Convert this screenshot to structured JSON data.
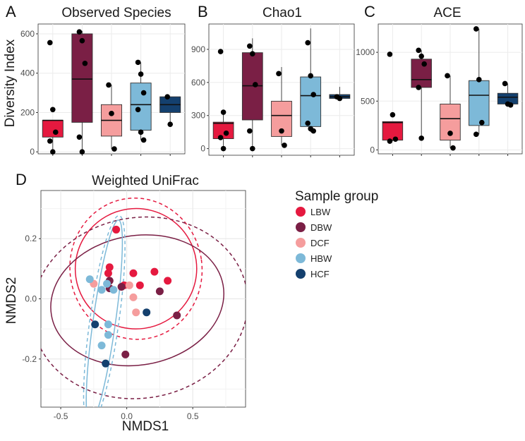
{
  "colors": {
    "LBW": "#e5193f",
    "DBW": "#7a1f45",
    "DCF": "#f59d9d",
    "HBW": "#7db9d8",
    "HCF": "#14406e"
  },
  "chart_data": [
    {
      "type": "box",
      "panel": "A",
      "title": "Observed Species",
      "ylabel": "Diversity Index",
      "categories": [
        "LBW",
        "DBW",
        "DCF",
        "HBW",
        "HCF"
      ],
      "ylim": [
        -10,
        650
      ],
      "yticks": [
        0,
        200,
        400,
        600
      ],
      "boxes": [
        {
          "group": "LBW",
          "min": 0,
          "q1": 75,
          "median": 160,
          "q3": 160,
          "max": 160
        },
        {
          "group": "DBW",
          "min": 0,
          "q1": 150,
          "median": 370,
          "q3": 600,
          "max": 615
        },
        {
          "group": "DCF",
          "min": 15,
          "q1": 80,
          "median": 160,
          "q3": 240,
          "max": 340
        },
        {
          "group": "HBW",
          "min": 60,
          "q1": 110,
          "median": 240,
          "q3": 350,
          "max": 455
        },
        {
          "group": "HCF",
          "min": 140,
          "q1": 200,
          "median": 240,
          "q3": 280,
          "max": 280
        }
      ],
      "points": [
        {
          "group": "LBW",
          "values": [
            555,
            215,
            100,
            55,
            0
          ]
        },
        {
          "group": "DBW",
          "values": [
            610,
            565,
            450,
            75,
            0
          ]
        },
        {
          "group": "DCF",
          "values": [
            340,
            195,
            15
          ]
        },
        {
          "group": "HBW",
          "values": [
            455,
            395,
            300,
            215,
            100,
            60
          ]
        },
        {
          "group": "HCF",
          "values": [
            280,
            140
          ]
        }
      ]
    },
    {
      "type": "box",
      "panel": "B",
      "title": "Chao1",
      "categories": [
        "LBW",
        "DBW",
        "DCF",
        "HBW",
        "HCF"
      ],
      "ylim": [
        -60,
        1130
      ],
      "yticks": [
        0,
        300,
        600,
        900
      ],
      "boxes": [
        {
          "group": "LBW",
          "min": 0,
          "q1": 90,
          "median": 230,
          "q3": 240,
          "max": 350
        },
        {
          "group": "DBW",
          "min": 0,
          "q1": 260,
          "median": 570,
          "q3": 870,
          "max": 1000
        },
        {
          "group": "DCF",
          "min": 30,
          "q1": 110,
          "median": 300,
          "q3": 430,
          "max": 740
        },
        {
          "group": "HBW",
          "min": 150,
          "q1": 200,
          "median": 480,
          "q3": 650,
          "max": 1090
        },
        {
          "group": "HCF",
          "min": 440,
          "q1": 455,
          "median": 470,
          "q3": 490,
          "max": 560
        }
      ],
      "points": [
        {
          "group": "LBW",
          "values": [
            880,
            330,
            140,
            100,
            0
          ]
        },
        {
          "group": "DBW",
          "values": [
            930,
            860,
            580,
            160,
            0
          ]
        },
        {
          "group": "DCF",
          "values": [
            680,
            160,
            30
          ]
        },
        {
          "group": "HBW",
          "values": [
            960,
            660,
            490,
            230,
            180,
            160
          ]
        },
        {
          "group": "HCF",
          "values": [
            470,
            455
          ]
        }
      ]
    },
    {
      "type": "box",
      "panel": "C",
      "title": "ACE",
      "categories": [
        "LBW",
        "DBW",
        "DCF",
        "HBW",
        "HCF"
      ],
      "ylim": [
        -40,
        1290
      ],
      "yticks": [
        0,
        500,
        1000
      ],
      "boxes": [
        {
          "group": "LBW",
          "min": 90,
          "q1": 100,
          "median": 280,
          "q3": 290,
          "max": 290
        },
        {
          "group": "DBW",
          "min": 120,
          "q1": 640,
          "median": 720,
          "q3": 930,
          "max": 1020
        },
        {
          "group": "DCF",
          "min": 20,
          "q1": 100,
          "median": 320,
          "q3": 470,
          "max": 760
        },
        {
          "group": "HBW",
          "min": 160,
          "q1": 250,
          "median": 560,
          "q3": 710,
          "max": 1240
        },
        {
          "group": "HCF",
          "min": 460,
          "q1": 470,
          "median": 540,
          "q3": 580,
          "max": 680
        }
      ],
      "points": [
        {
          "group": "LBW",
          "values": [
            980,
            360,
            110,
            90
          ]
        },
        {
          "group": "DBW",
          "values": [
            1020,
            960,
            880,
            640,
            120
          ]
        },
        {
          "group": "DCF",
          "values": [
            760,
            170,
            20
          ]
        },
        {
          "group": "HBW",
          "values": [
            1240,
            720,
            280,
            160
          ]
        },
        {
          "group": "HCF",
          "values": [
            680,
            470,
            460
          ]
        }
      ]
    },
    {
      "type": "scatter",
      "panel": "D",
      "title": "Weighted UniFrac",
      "xlabel": "NMDS1",
      "ylabel": "NMDS2",
      "xlim": [
        -0.65,
        0.9
      ],
      "ylim": [
        -0.36,
        0.36
      ],
      "xticks": [
        -0.5,
        0.0,
        0.5
      ],
      "xtick_labels": [
        "-0.5",
        "0.0",
        "0.5"
      ],
      "yticks": [
        -0.2,
        0.0,
        0.2
      ],
      "ytick_labels": [
        "-0.2",
        "0.0",
        "0.2"
      ],
      "legend_title": "Sample group",
      "legend_position": "right",
      "series": [
        {
          "name": "LBW",
          "points": [
            [
              -0.08,
              0.23
            ],
            [
              -0.13,
              0.105
            ],
            [
              -0.14,
              0.085
            ],
            [
              0.05,
              0.085
            ],
            [
              0.21,
              0.09
            ],
            [
              0.1,
              0.045
            ],
            [
              -0.02,
              0.045
            ],
            [
              0.31,
              0.06
            ]
          ]
        },
        {
          "name": "DBW",
          "points": [
            [
              -0.13,
              0.06
            ],
            [
              -0.04,
              0.04
            ],
            [
              0.25,
              0.025
            ],
            [
              0.38,
              -0.055
            ],
            [
              -0.13,
              0.035
            ],
            [
              -0.01,
              -0.185
            ]
          ]
        },
        {
          "name": "DCF",
          "points": [
            [
              -0.25,
              0.05
            ],
            [
              0.02,
              0.045
            ],
            [
              0.05,
              0.005
            ],
            [
              0.07,
              -0.045
            ]
          ]
        },
        {
          "name": "HBW",
          "points": [
            [
              -0.28,
              0.065
            ],
            [
              -0.15,
              0.05
            ],
            [
              -0.19,
              0.03
            ],
            [
              -0.14,
              -0.085
            ],
            [
              -0.14,
              -0.12
            ],
            [
              -0.19,
              -0.155
            ],
            [
              -0.1,
              0.03
            ]
          ]
        },
        {
          "name": "HCF",
          "points": [
            [
              -0.24,
              -0.085
            ],
            [
              -0.16,
              -0.215
            ],
            [
              0.15,
              -0.045
            ]
          ]
        }
      ],
      "ellipses": [
        {
          "name": "LBW",
          "center": [
            0.07,
            0.1
          ],
          "rx": 0.46,
          "ry": 0.2,
          "angle": 8,
          "style": "solid"
        },
        {
          "name": "LBW",
          "center": [
            0.07,
            0.1
          ],
          "rx": 0.5,
          "ry": 0.235,
          "angle": 8,
          "style": "dashed"
        },
        {
          "name": "DBW",
          "center": [
            0.08,
            -0.005
          ],
          "rx": 0.66,
          "ry": 0.215,
          "angle": 10,
          "style": "solid"
        },
        {
          "name": "DBW",
          "center": [
            0.1,
            -0.03
          ],
          "rx": 0.82,
          "ry": 0.3,
          "angle": 10,
          "style": "dashed"
        },
        {
          "name": "HBW",
          "center": [
            -0.17,
            -0.075
          ],
          "rx": 0.085,
          "ry": 0.34,
          "angle": -8,
          "style": "solid"
        },
        {
          "name": "HBW",
          "center": [
            -0.17,
            -0.075
          ],
          "rx": 0.11,
          "ry": 0.355,
          "angle": -8,
          "style": "dashed"
        }
      ]
    }
  ]
}
